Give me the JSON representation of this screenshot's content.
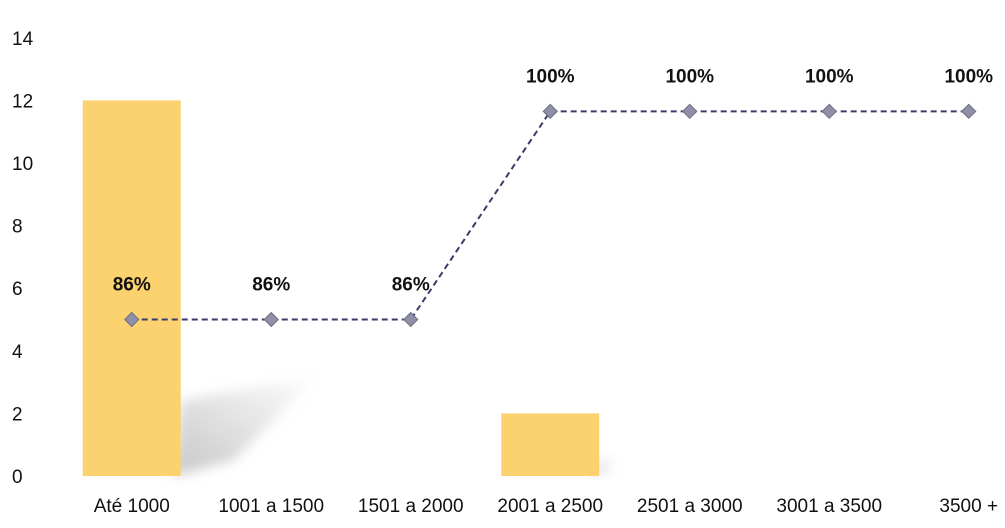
{
  "chart_data": {
    "type": "bar",
    "categories": [
      "Até 1000",
      "1001 a 1500",
      "1501 a 2000",
      "2001 a 2500",
      "2501 a 3000",
      "3001 a 3500",
      "3500 +"
    ],
    "ylim": [
      0,
      14
    ],
    "yticks": [
      0,
      2,
      4,
      6,
      8,
      10,
      12,
      14
    ],
    "grid": false,
    "legend": "none",
    "series": [
      {
        "type": "bar",
        "values": [
          12,
          0,
          0,
          2,
          0,
          0,
          0
        ],
        "color": "#FCD271"
      },
      {
        "type": "line",
        "values": [
          5,
          5,
          5,
          11.65,
          11.65,
          11.65,
          11.65
        ],
        "data_labels": [
          "86%",
          "86%",
          "86%",
          "100%",
          "100%",
          "100%",
          "100%"
        ],
        "color": "#3C3A6B",
        "line_style": "dashed",
        "marker": "diamond",
        "marker_color": "#8F8FA6"
      }
    ]
  }
}
